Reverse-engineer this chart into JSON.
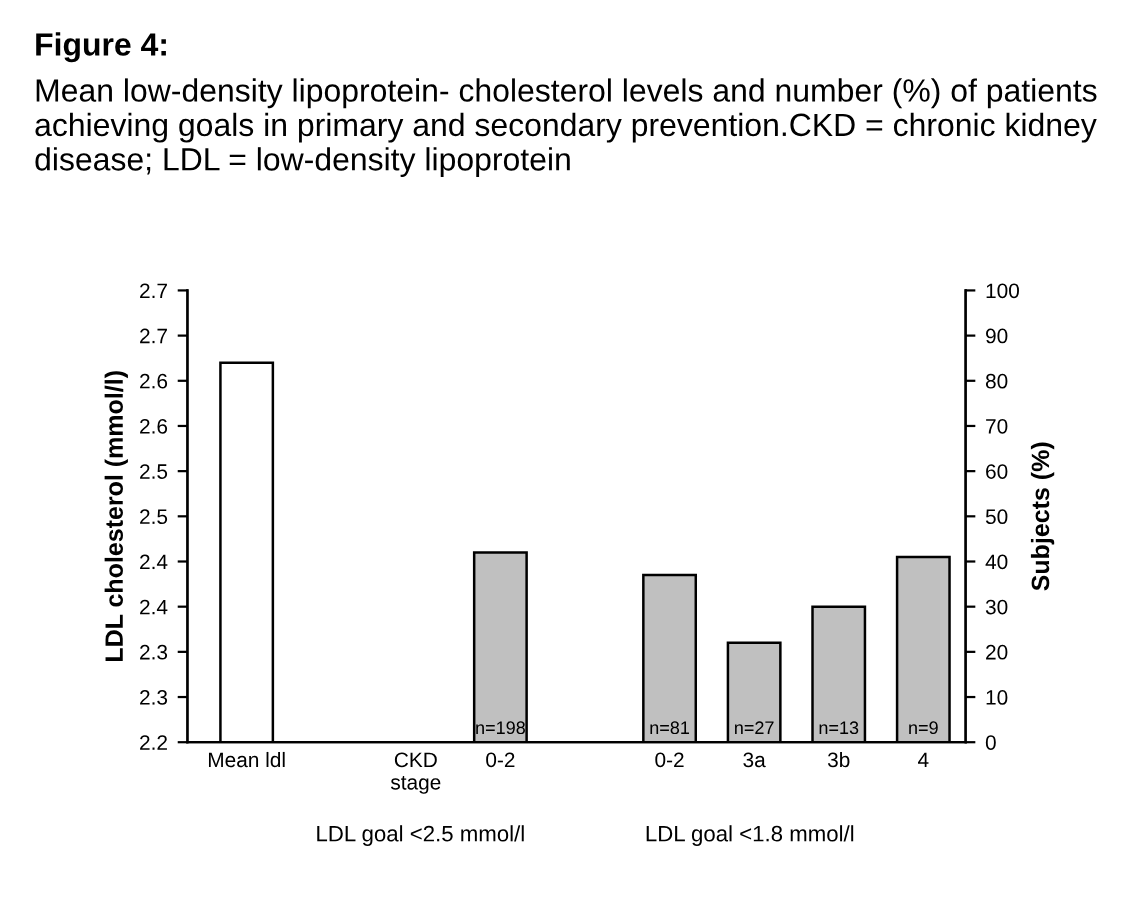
{
  "chart_data": {
    "type": "bar",
    "title": "Figure 4:",
    "subtitle": "Mean low-density lipoprotein- cholesterol levels and number (%) of patients achieving goals in primary and secondary prevention.CKD = chronic kidney disease; LDL = low-density lipoprotein",
    "ylabel": "LDL cholesterol (mmol/l)",
    "y2label": "Subjects (%)",
    "categories": [
      "Mean ldl",
      null,
      "CKD\nstage",
      "0-2",
      null,
      "0-2",
      "3a",
      "3b",
      "4"
    ],
    "series": [
      {
        "color": "#ffffff",
        "values": [
          2.62,
          null,
          null,
          null,
          null,
          null,
          null,
          null,
          null
        ]
      },
      {
        "color": "#c0c0c0",
        "axis": "y2",
        "values": [
          null,
          null,
          null,
          42,
          null,
          37,
          22,
          30,
          41
        ]
      }
    ],
    "ylim": [
      2.2,
      2.7
    ],
    "yticks": [
      {
        "value": 2.2,
        "label": "2.2"
      },
      {
        "value": 2.25,
        "label": "2.3"
      },
      {
        "value": 2.3,
        "label": "2.3"
      },
      {
        "value": 2.35,
        "label": "2.4"
      },
      {
        "value": 2.4,
        "label": "2.4"
      },
      {
        "value": 2.45,
        "label": "2.5"
      },
      {
        "value": 2.5,
        "label": "2.5"
      },
      {
        "value": 2.55,
        "label": "2.6"
      },
      {
        "value": 2.6,
        "label": "2.6"
      },
      {
        "value": 2.65,
        "label": "2.7"
      },
      {
        "value": 2.7,
        "label": "2.7"
      }
    ],
    "y2lim": [
      0,
      100
    ],
    "y2ticks": [
      0,
      10,
      20,
      30,
      40,
      50,
      60,
      70,
      80,
      90,
      100
    ],
    "annotations": [
      "n=198",
      "n=81",
      "n=27",
      "n=13",
      "n=9",
      "LDL goal <2.5 mmol/l",
      "LDL goal <1.8 mmol/l"
    ],
    "grid": false,
    "legend": false
  }
}
